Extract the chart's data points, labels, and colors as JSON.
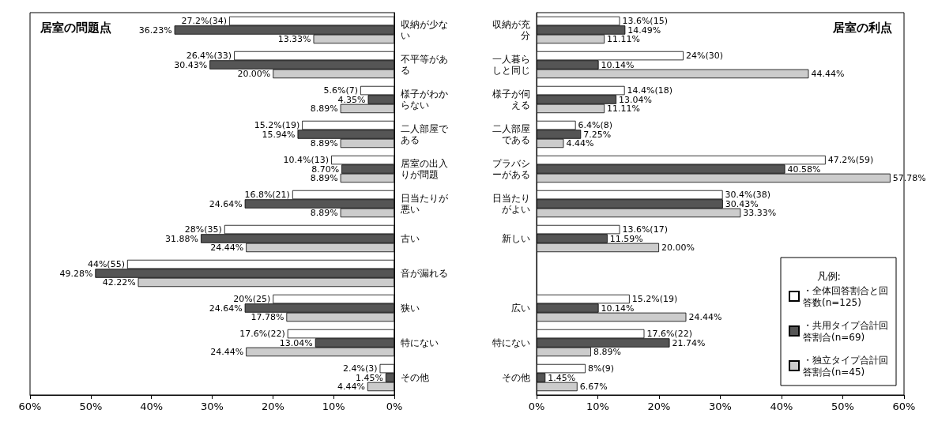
{
  "chart_data": [
    {
      "type": "bar",
      "orientation": "horizontal",
      "title": "居室の問題点",
      "categories": [
        "収納が少ない",
        "不平等がある",
        "様子がわからない",
        "二人部屋である",
        "居室の出入りが問題",
        "日当たりが悪い",
        "古い",
        "音が漏れる",
        "狭い",
        "特にない",
        "その他"
      ],
      "series": [
        {
          "color": "#ffffff",
          "values": [
            27.2,
            26.4,
            5.6,
            15.2,
            10.4,
            16.8,
            28,
            44,
            20,
            17.6,
            2.4
          ],
          "value_labels": [
            "27.2%(34)",
            "26.4%(33)",
            "5.6%(7)",
            "15.2%(19)",
            "10.4%(13)",
            "16.8%(21)",
            "28%(35)",
            "44%(55)",
            "20%(25)",
            "17.6%(22)",
            "2.4%(3)"
          ]
        },
        {
          "color": "#555555",
          "values": [
            36.23,
            30.43,
            4.35,
            15.94,
            8.7,
            24.64,
            31.88,
            49.28,
            24.64,
            13.04,
            1.45
          ],
          "value_labels": [
            "36.23%",
            "30.43%",
            "4.35%",
            "15.94%",
            "8.70%",
            "24.64%",
            "31.88%",
            "49.28%",
            "24.64%",
            "13.04%",
            "1.45%"
          ]
        },
        {
          "color": "#cccccc",
          "values": [
            13.33,
            20.0,
            8.89,
            8.89,
            8.89,
            8.89,
            24.44,
            42.22,
            17.78,
            24.44,
            4.44
          ],
          "value_labels": [
            "13.33%",
            "20.00%",
            "8.89%",
            "8.89%",
            "8.89%",
            "8.89%",
            "24.44%",
            "42.22%",
            "17.78%",
            "24.44%",
            "4.44%"
          ]
        }
      ],
      "xlim": [
        60,
        0
      ],
      "xticks": [
        {
          "value": 60,
          "label": "60%"
        },
        {
          "value": 50,
          "label": "50%"
        },
        {
          "value": 40,
          "label": "40%"
        },
        {
          "value": 30,
          "label": "30%"
        },
        {
          "value": 20,
          "label": "20%"
        },
        {
          "value": 10,
          "label": "10%"
        },
        {
          "value": 0,
          "label": "0%"
        }
      ]
    },
    {
      "type": "bar",
      "orientation": "horizontal",
      "title": "居室の利点",
      "categories": [
        "収納が充分",
        "一人暮らしと同じ",
        "様子が伺える",
        "二人部屋である",
        "プラバシーがある",
        "日当たりがよい",
        "新しい",
        null,
        "広い",
        "特にない",
        "その他"
      ],
      "series": [
        {
          "name": "・全体回答割合と回答数(n=125)",
          "color": "#ffffff",
          "values": [
            13.6,
            24,
            14.4,
            6.4,
            47.2,
            30.4,
            13.6,
            null,
            15.2,
            17.6,
            8
          ],
          "value_labels": [
            "13.6%(15)",
            "24%(30)",
            "14.4%(18)",
            "6.4%(8)",
            "47.2%(59)",
            "30.4%(38)",
            "13.6%(17)",
            null,
            "15.2%(19)",
            "17.6%(22)",
            "8%(9)"
          ]
        },
        {
          "name": "・共用タイプ合計回答割合(n=69)",
          "color": "#555555",
          "values": [
            14.49,
            10.14,
            13.04,
            7.25,
            40.58,
            30.43,
            11.59,
            null,
            10.14,
            21.74,
            1.45
          ],
          "value_labels": [
            "14.49%",
            "10.14%",
            "13.04%",
            "7.25%",
            "40.58%",
            "30.43%",
            "11.59%",
            null,
            "10.14%",
            "21.74%",
            "1.45%"
          ]
        },
        {
          "name": "・独立タイプ合計回答割合(n=45)",
          "color": "#cccccc",
          "values": [
            11.11,
            44.44,
            11.11,
            4.44,
            57.78,
            33.33,
            20.0,
            null,
            24.44,
            8.89,
            6.67
          ],
          "value_labels": [
            "11.11%",
            "44.44%",
            "11.11%",
            "4.44%",
            "57.78%",
            "33.33%",
            "20.00%",
            null,
            "24.44%",
            "8.89%",
            "6.67%"
          ]
        }
      ],
      "xlim": [
        0,
        60
      ],
      "xticks": [
        {
          "value": 0,
          "label": "0%"
        },
        {
          "value": 10,
          "label": "10%"
        },
        {
          "value": 20,
          "label": "20%"
        },
        {
          "value": 30,
          "label": "30%"
        },
        {
          "value": 40,
          "label": "40%"
        },
        {
          "value": 50,
          "label": "50%"
        },
        {
          "value": 60,
          "label": "60%"
        }
      ],
      "legend": "bottom right",
      "legend_title": "凡例:"
    }
  ]
}
